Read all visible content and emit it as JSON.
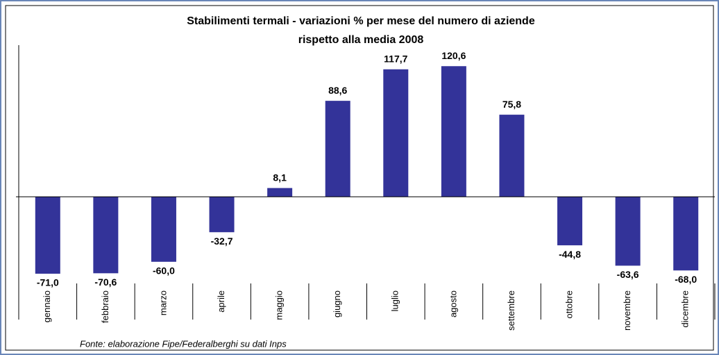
{
  "chart_data": {
    "type": "bar",
    "title": [
      "Stabilimenti termali - variazioni % per mese del numero di aziende",
      "rispetto alla media 2008"
    ],
    "categories": [
      "gennaio",
      "febbraio",
      "marzo",
      "aprile",
      "maggio",
      "giugno",
      "luglio",
      "agosto",
      "settembre",
      "ottobre",
      "novembre",
      "dicembre"
    ],
    "values": [
      -71.0,
      -70.6,
      -60.0,
      -32.7,
      8.1,
      88.6,
      117.7,
      120.6,
      75.8,
      -44.8,
      -63.6,
      -68.0
    ],
    "value_labels": [
      "-71,0",
      "-70,6",
      "-60,0",
      "-32,7",
      "8,1",
      "88,6",
      "117,7",
      "120,6",
      "75,8",
      "-44,8",
      "-63,6",
      "-68,0"
    ],
    "color": "#333399",
    "ylim": [
      -80,
      140
    ],
    "source": "Fonte: elaborazione Fipe/Federalberghi su dati Inps"
  }
}
